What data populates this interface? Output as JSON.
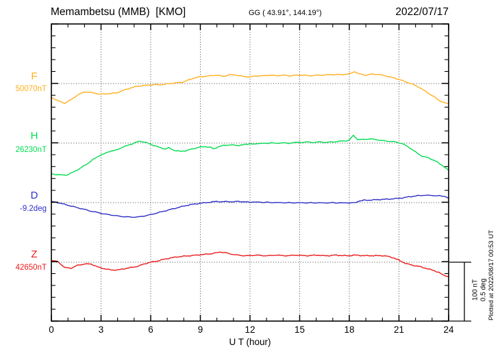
{
  "header": {
    "station": "Memambetsu (MMB)  [KMO]",
    "coordinates": "GG ( 43.91°, 144.19°)",
    "date": "2022/07/17"
  },
  "components": [
    {
      "label": "F",
      "value": "50070nT",
      "color": "#FFAF1C"
    },
    {
      "label": "H",
      "value": "26230nT",
      "color": "#00DC50"
    },
    {
      "label": "D",
      "value": "-9.2deg",
      "color": "#2D2DC8"
    },
    {
      "label": "Z",
      "value": "42650nT",
      "color": "#EB1919"
    }
  ],
  "x_axis": {
    "title": "U T (hour)",
    "tick_labels": [
      "0",
      "3",
      "6",
      "9",
      "12",
      "15",
      "18",
      "21",
      "24"
    ],
    "tick_hours": [
      0,
      3,
      6,
      9,
      12,
      15,
      18,
      21,
      24
    ]
  },
  "scale_bar": {
    "nt_label": "100 nT",
    "deg_label": "0.5 deg"
  },
  "footer": {
    "plotted_at": "Plotted at 2022/08/17 00:53 UT"
  },
  "chart_data": {
    "type": "line",
    "title": "Memambetsu (MMB) [KMO] magnetogram 2022/07/17",
    "xlabel": "U T (hour)",
    "x_range": [
      0,
      24
    ],
    "grid": "dotted vertical every 3h, dotted horizontal at each component baseline",
    "scale": {
      "nT_per_division": 100,
      "deg_per_division": 0.5
    },
    "series": [
      {
        "name": "F",
        "unit": "nT",
        "base": 50070,
        "points": [
          [
            0,
            50047
          ],
          [
            0.4,
            50041
          ],
          [
            0.8,
            50037
          ],
          [
            1.2,
            50043
          ],
          [
            1.6,
            50051
          ],
          [
            2.0,
            50056
          ],
          [
            2.4,
            50055
          ],
          [
            2.8,
            50053
          ],
          [
            3.0,
            50052
          ],
          [
            3.4,
            50053
          ],
          [
            3.9,
            50054
          ],
          [
            4.5,
            50060
          ],
          [
            5.1,
            50065
          ],
          [
            5.7,
            50067
          ],
          [
            6.2,
            50068
          ],
          [
            6.7,
            50068
          ],
          [
            7.1,
            50070
          ],
          [
            7.5,
            50071
          ],
          [
            7.9,
            50072
          ],
          [
            8.3,
            50076
          ],
          [
            8.7,
            50080
          ],
          [
            9.2,
            50082
          ],
          [
            9.6,
            50083
          ],
          [
            10.0,
            50084
          ],
          [
            10.4,
            50082
          ],
          [
            10.8,
            50085
          ],
          [
            11.2,
            50084
          ],
          [
            11.6,
            50082
          ],
          [
            12.0,
            50081
          ],
          [
            12.4,
            50083
          ],
          [
            12.8,
            50083
          ],
          [
            13.2,
            50084
          ],
          [
            13.6,
            50083
          ],
          [
            14.0,
            50084
          ],
          [
            14.4,
            50083
          ],
          [
            14.8,
            50084
          ],
          [
            15.2,
            50084
          ],
          [
            15.6,
            50083
          ],
          [
            16.0,
            50084
          ],
          [
            16.4,
            50084
          ],
          [
            16.8,
            50085
          ],
          [
            17.2,
            50085
          ],
          [
            17.6,
            50085
          ],
          [
            18.0,
            50086
          ],
          [
            18.3,
            50090
          ],
          [
            18.6,
            50086
          ],
          [
            19.0,
            50084
          ],
          [
            19.4,
            50086
          ],
          [
            19.8,
            50085
          ],
          [
            20.2,
            50083
          ],
          [
            20.6,
            50080
          ],
          [
            21.0,
            50077
          ],
          [
            21.4,
            50073
          ],
          [
            21.8,
            50069
          ],
          [
            22.2,
            50064
          ],
          [
            22.6,
            50057
          ],
          [
            23.0,
            50050
          ],
          [
            23.4,
            50042
          ],
          [
            23.7,
            50038
          ],
          [
            24.0,
            50036
          ]
        ]
      },
      {
        "name": "H",
        "unit": "nT",
        "base": 26230,
        "points": [
          [
            0,
            26178
          ],
          [
            0.4,
            26177
          ],
          [
            0.9,
            26176
          ],
          [
            1.3,
            26181
          ],
          [
            1.7,
            26187
          ],
          [
            2.1,
            26194
          ],
          [
            2.5,
            26202
          ],
          [
            2.9,
            26209
          ],
          [
            3.2,
            26212
          ],
          [
            3.5,
            26216
          ],
          [
            3.9,
            26218
          ],
          [
            4.3,
            26223
          ],
          [
            4.7,
            26227
          ],
          [
            5.0,
            26230
          ],
          [
            5.3,
            26233
          ],
          [
            5.6,
            26232
          ],
          [
            6.0,
            26228
          ],
          [
            6.5,
            26223
          ],
          [
            6.9,
            26220
          ],
          [
            7.1,
            26222
          ],
          [
            7.4,
            26218
          ],
          [
            7.8,
            26216
          ],
          [
            8.1,
            26217
          ],
          [
            8.5,
            26220
          ],
          [
            8.9,
            26223
          ],
          [
            9.3,
            26224
          ],
          [
            9.6,
            26223
          ],
          [
            9.8,
            26220
          ],
          [
            10.1,
            26224
          ],
          [
            10.4,
            26226
          ],
          [
            10.8,
            26227
          ],
          [
            11.2,
            26226
          ],
          [
            11.6,
            26227
          ],
          [
            12.0,
            26229
          ],
          [
            12.3,
            26228
          ],
          [
            12.6,
            26230
          ],
          [
            13.0,
            26229
          ],
          [
            13.3,
            26231
          ],
          [
            13.6,
            26229
          ],
          [
            14.0,
            26231
          ],
          [
            14.3,
            26229
          ],
          [
            14.6,
            26231
          ],
          [
            15.0,
            26231
          ],
          [
            15.4,
            26232
          ],
          [
            15.8,
            26231
          ],
          [
            16.2,
            26232
          ],
          [
            16.6,
            26231
          ],
          [
            17.0,
            26232
          ],
          [
            17.4,
            26233
          ],
          [
            17.8,
            26234
          ],
          [
            18.0,
            26235
          ],
          [
            18.25,
            26243
          ],
          [
            18.5,
            26236
          ],
          [
            18.8,
            26236
          ],
          [
            19.2,
            26237
          ],
          [
            19.6,
            26236
          ],
          [
            20.0,
            26234
          ],
          [
            20.4,
            26233
          ],
          [
            20.8,
            26232
          ],
          [
            21.2,
            26229
          ],
          [
            21.6,
            26223
          ],
          [
            22.0,
            26215
          ],
          [
            22.4,
            26208
          ],
          [
            22.8,
            26205
          ],
          [
            23.2,
            26200
          ],
          [
            23.6,
            26193
          ],
          [
            24.0,
            26184
          ]
        ]
      },
      {
        "name": "D",
        "unit": "deg",
        "base": -9.2,
        "points": [
          [
            0,
            -9.191
          ],
          [
            0.4,
            -9.2
          ],
          [
            0.8,
            -9.214
          ],
          [
            1.2,
            -9.229
          ],
          [
            1.6,
            -9.243
          ],
          [
            2.0,
            -9.257
          ],
          [
            2.4,
            -9.272
          ],
          [
            2.8,
            -9.283
          ],
          [
            3.2,
            -9.295
          ],
          [
            3.6,
            -9.303
          ],
          [
            4.0,
            -9.312
          ],
          [
            4.4,
            -9.318
          ],
          [
            4.8,
            -9.321
          ],
          [
            5.2,
            -9.321
          ],
          [
            5.6,
            -9.312
          ],
          [
            6.0,
            -9.301
          ],
          [
            6.4,
            -9.286
          ],
          [
            6.8,
            -9.272
          ],
          [
            7.2,
            -9.257
          ],
          [
            7.6,
            -9.243
          ],
          [
            8.0,
            -9.229
          ],
          [
            8.4,
            -9.217
          ],
          [
            8.8,
            -9.209
          ],
          [
            9.2,
            -9.202
          ],
          [
            9.6,
            -9.196
          ],
          [
            10.0,
            -9.19
          ],
          [
            10.3,
            -9.193
          ],
          [
            10.7,
            -9.19
          ],
          [
            11.0,
            -9.194
          ],
          [
            11.3,
            -9.188
          ],
          [
            11.6,
            -9.194
          ],
          [
            12.0,
            -9.195
          ],
          [
            12.5,
            -9.196
          ],
          [
            13.0,
            -9.198
          ],
          [
            13.5,
            -9.199
          ],
          [
            14.0,
            -9.2
          ],
          [
            14.5,
            -9.201
          ],
          [
            15.0,
            -9.201
          ],
          [
            15.5,
            -9.202
          ],
          [
            16.0,
            -9.201
          ],
          [
            16.5,
            -9.202
          ],
          [
            17.0,
            -9.201
          ],
          [
            17.5,
            -9.202
          ],
          [
            18.0,
            -9.202
          ],
          [
            18.4,
            -9.2
          ],
          [
            18.6,
            -9.186
          ],
          [
            18.9,
            -9.18
          ],
          [
            19.2,
            -9.179
          ],
          [
            19.6,
            -9.176
          ],
          [
            20.0,
            -9.173
          ],
          [
            20.4,
            -9.17
          ],
          [
            20.8,
            -9.166
          ],
          [
            21.2,
            -9.16
          ],
          [
            21.6,
            -9.151
          ],
          [
            22.0,
            -9.144
          ],
          [
            22.3,
            -9.14
          ],
          [
            22.6,
            -9.138
          ],
          [
            23.0,
            -9.14
          ],
          [
            23.3,
            -9.142
          ],
          [
            23.6,
            -9.144
          ],
          [
            23.8,
            -9.148
          ],
          [
            24.0,
            -9.163
          ]
        ]
      },
      {
        "name": "Z",
        "unit": "nT",
        "base": 42650,
        "points": [
          [
            0,
            42653
          ],
          [
            0.4,
            42651
          ],
          [
            0.8,
            42641
          ],
          [
            1.2,
            42640
          ],
          [
            1.6,
            42645
          ],
          [
            2.0,
            42647
          ],
          [
            2.4,
            42647
          ],
          [
            2.8,
            42642
          ],
          [
            3.2,
            42639
          ],
          [
            3.6,
            42637
          ],
          [
            4.0,
            42637
          ],
          [
            4.4,
            42639
          ],
          [
            4.8,
            42641
          ],
          [
            5.2,
            42643
          ],
          [
            5.6,
            42647
          ],
          [
            6.0,
            42650
          ],
          [
            6.4,
            42652
          ],
          [
            6.8,
            42655
          ],
          [
            7.2,
            42657
          ],
          [
            7.6,
            42659
          ],
          [
            8.0,
            42660
          ],
          [
            8.4,
            42661
          ],
          [
            8.8,
            42662
          ],
          [
            9.2,
            42663
          ],
          [
            9.6,
            42664
          ],
          [
            10.0,
            42666
          ],
          [
            10.2,
            42667
          ],
          [
            10.5,
            42666
          ],
          [
            10.8,
            42664
          ],
          [
            11.2,
            42662
          ],
          [
            11.6,
            42661
          ],
          [
            12.0,
            42661
          ],
          [
            12.4,
            42662
          ],
          [
            12.8,
            42661
          ],
          [
            13.2,
            42661
          ],
          [
            13.6,
            42662
          ],
          [
            14.0,
            42661
          ],
          [
            14.4,
            42661
          ],
          [
            14.8,
            42662
          ],
          [
            15.2,
            42661
          ],
          [
            15.6,
            42661
          ],
          [
            16.0,
            42662
          ],
          [
            16.4,
            42661
          ],
          [
            16.8,
            42661
          ],
          [
            17.2,
            42662
          ],
          [
            17.6,
            42661
          ],
          [
            18.0,
            42661
          ],
          [
            18.4,
            42662
          ],
          [
            18.8,
            42661
          ],
          [
            19.2,
            42661
          ],
          [
            19.6,
            42661
          ],
          [
            20.0,
            42661
          ],
          [
            20.3,
            42660
          ],
          [
            20.7,
            42657
          ],
          [
            21.1,
            42652
          ],
          [
            21.4,
            42648
          ],
          [
            21.8,
            42645
          ],
          [
            22.2,
            42643
          ],
          [
            22.6,
            42640
          ],
          [
            23.0,
            42637
          ],
          [
            23.4,
            42633
          ],
          [
            23.7,
            42628
          ],
          [
            24.0,
            42626
          ]
        ]
      }
    ]
  }
}
